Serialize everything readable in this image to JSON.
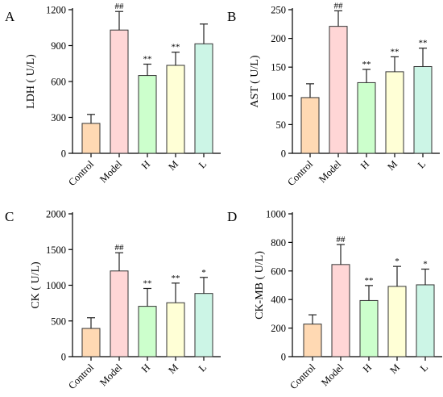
{
  "chart_data": [
    {
      "type": "bar",
      "panel_label": "A",
      "ylabel": "LDH ( U/L)",
      "categories": [
        "Control",
        "Model",
        "H",
        "M",
        "L"
      ],
      "values": [
        250,
        1030,
        650,
        735,
        915
      ],
      "errors": [
        75,
        155,
        95,
        110,
        165
      ],
      "significance": [
        "",
        "##",
        "**",
        "**",
        ""
      ],
      "ylim": [
        0,
        1200
      ],
      "yticks": [
        0,
        300,
        600,
        900,
        1200
      ],
      "colors": [
        "#FFD9B3",
        "#FFD6D6",
        "#CCFFCC",
        "#FFFFD6",
        "#CCF5E6"
      ]
    },
    {
      "type": "bar",
      "panel_label": "B",
      "ylabel": "AST ( U/L)",
      "categories": [
        "Control",
        "Model",
        "H",
        "M",
        "L"
      ],
      "values": [
        97,
        221,
        123,
        142,
        151
      ],
      "errors": [
        24,
        27,
        23,
        26,
        32
      ],
      "significance": [
        "",
        "##",
        "**",
        "**",
        "**"
      ],
      "ylim": [
        0,
        250
      ],
      "yticks": [
        0,
        50,
        100,
        150,
        200,
        250
      ],
      "colors": [
        "#FFD9B3",
        "#FFD6D6",
        "#CCFFCC",
        "#FFFFD6",
        "#CCF5E6"
      ]
    },
    {
      "type": "bar",
      "panel_label": "C",
      "ylabel": "CK ( U/L)",
      "categories": [
        "Control",
        "Model",
        "H",
        "M",
        "L"
      ],
      "values": [
        395,
        1200,
        705,
        755,
        885
      ],
      "errors": [
        150,
        255,
        250,
        275,
        225
      ],
      "significance": [
        "",
        "##",
        "**",
        "**",
        "*"
      ],
      "ylim": [
        0,
        2000
      ],
      "yticks": [
        0,
        500,
        1000,
        1500,
        2000
      ],
      "colors": [
        "#FFD9B3",
        "#FFD6D6",
        "#CCFFCC",
        "#FFFFD6",
        "#CCF5E6"
      ]
    },
    {
      "type": "bar",
      "panel_label": "D",
      "ylabel": "CK-MB ( U/L)",
      "categories": [
        "Control",
        "Model",
        "H",
        "M",
        "L"
      ],
      "values": [
        228,
        645,
        393,
        492,
        503
      ],
      "errors": [
        65,
        140,
        105,
        140,
        110
      ],
      "significance": [
        "",
        "##",
        "**",
        "*",
        "*"
      ],
      "ylim": [
        0,
        1000
      ],
      "yticks": [
        0,
        200,
        400,
        600,
        800,
        1000
      ],
      "colors": [
        "#FFD9B3",
        "#FFD6D6",
        "#CCFFCC",
        "#FFFFD6",
        "#CCF5E6"
      ]
    }
  ]
}
